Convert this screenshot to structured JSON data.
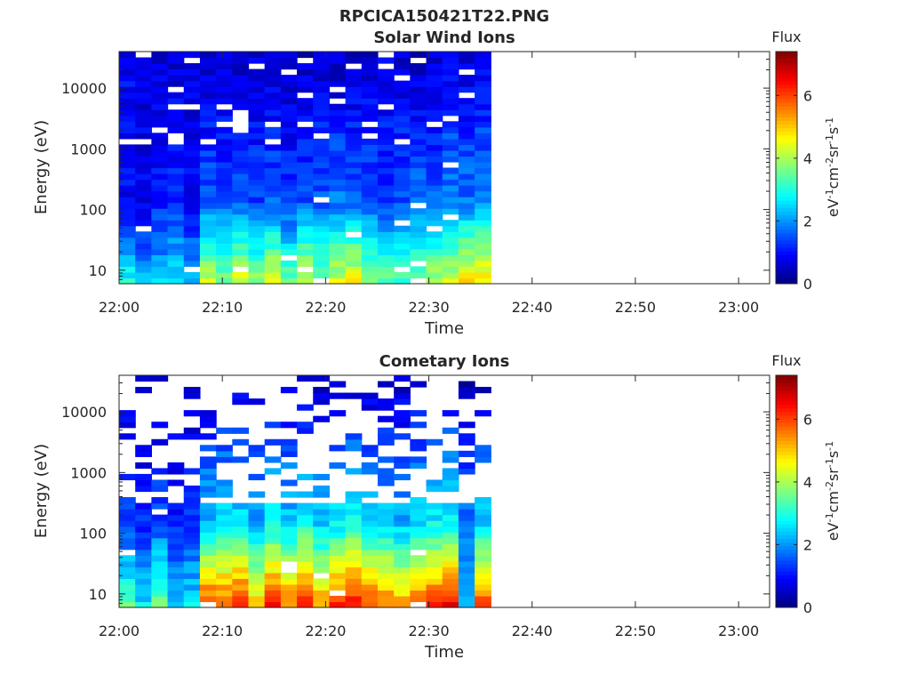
{
  "figure": {
    "title": "RPCICA150421T22.PNG"
  },
  "colors": {
    "colormap": [
      "#00007f",
      "#0000ff",
      "#007fff",
      "#00ffff",
      "#7fff7f",
      "#ffff00",
      "#ff7f00",
      "#ff0000",
      "#7f0000"
    ]
  },
  "chart_data": [
    {
      "type": "heatmap",
      "title": "Solar Wind Ions",
      "xlabel": "Time",
      "ylabel": "Energy (eV)",
      "x_ticks": [
        "22:00",
        "22:10",
        "22:20",
        "22:30",
        "22:40",
        "22:50",
        "23:00"
      ],
      "x_range": [
        "22:00",
        "23:03"
      ],
      "data_end": "22:36",
      "y_scale": "log",
      "y_ticks": [
        10,
        100,
        1000,
        10000
      ],
      "y_range": [
        6,
        40000
      ],
      "colorbar": {
        "label": "Flux",
        "unit": "eV-1cm-2sr-1s-1",
        "range": [
          0,
          7.4
        ],
        "ticks": [
          0,
          2,
          4,
          6
        ]
      },
      "low_energy_flux": [
        2.9,
        2.2,
        2.4,
        2.6,
        2.1,
        4.2,
        3.6,
        4.4,
        3.8,
        4.6,
        3.5,
        4.4,
        3.7,
        4.3,
        4.6,
        3.9,
        3.5,
        3.3,
        3.6,
        4.1,
        4.3,
        4.9,
        4.8
      ],
      "mid_energy_flux": [
        0.9,
        0.8,
        1.1,
        1.3,
        1.0,
        1.6,
        1.5,
        1.7,
        1.4,
        1.6,
        1.3,
        1.5,
        1.6,
        1.8,
        1.7,
        1.6,
        1.4,
        1.5,
        1.7,
        1.6,
        1.9,
        1.8,
        2.0
      ],
      "high_energy_flux": [
        0.9,
        0.7,
        0.7,
        0.6,
        0.6,
        0.5,
        0.6,
        0.5,
        0.6,
        0.6,
        0.5,
        0.5,
        0.6,
        0.5,
        0.5,
        0.6,
        0.7,
        0.6,
        0.5,
        0.6,
        0.8,
        0.6,
        0.7
      ]
    },
    {
      "type": "heatmap",
      "title": "Cometary Ions",
      "xlabel": "Time",
      "ylabel": "Energy (eV)",
      "x_ticks": [
        "22:00",
        "22:10",
        "22:20",
        "22:30",
        "22:40",
        "22:50",
        "23:00"
      ],
      "x_range": [
        "22:00",
        "23:03"
      ],
      "data_end": "22:36",
      "y_scale": "log",
      "y_ticks": [
        10,
        100,
        1000,
        10000
      ],
      "y_range": [
        6,
        40000
      ],
      "colorbar": {
        "label": "Flux",
        "unit": "eV-1cm-2sr-1s-1",
        "range": [
          0,
          7.4
        ],
        "ticks": [
          0,
          2,
          4,
          6
        ]
      },
      "low_energy_flux": [
        3.4,
        2.6,
        3.7,
        2.3,
        2.6,
        6.1,
        5.9,
        6.4,
        5.0,
        6.3,
        5.6,
        6.4,
        5.4,
        6.1,
        6.4,
        6.0,
        5.7,
        5.3,
        5.9,
        6.1,
        6.6,
        2.5,
        6.0
      ],
      "mid_energy_flux": [
        1.4,
        1.2,
        1.5,
        1.1,
        1.3,
        2.4,
        2.6,
        2.7,
        2.2,
        2.8,
        2.5,
        2.9,
        2.4,
        2.7,
        3.0,
        2.6,
        2.5,
        2.3,
        2.6,
        2.8,
        2.9,
        1.8,
        2.5
      ],
      "high_energy_flux": [
        0.5,
        0.4,
        0.5,
        0.4,
        0.4,
        0.5,
        0.6,
        0.5,
        0.4,
        0.5,
        0.5,
        0.6,
        0.5,
        0.5,
        0.6,
        0.5,
        0.4,
        0.5,
        0.5,
        0.6,
        0.5,
        0.4,
        0.5
      ]
    }
  ]
}
